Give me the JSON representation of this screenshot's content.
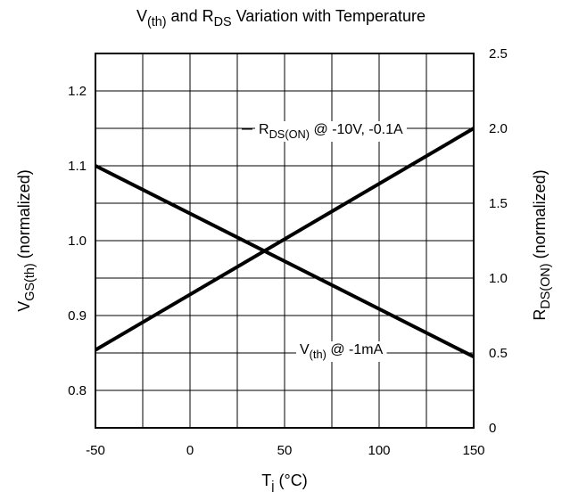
{
  "chart_data": {
    "type": "line",
    "title": {
      "parts": [
        {
          "text": "V",
          "sub": false
        },
        {
          "text": "(th)",
          "sub": true
        },
        {
          "text": " and R",
          "sub": false
        },
        {
          "text": "DS",
          "sub": true
        },
        {
          "text": " Variation with Temperature",
          "sub": false
        }
      ]
    },
    "xlabel": {
      "parts": [
        {
          "text": "T",
          "sub": false
        },
        {
          "text": "j",
          "sub": true
        },
        {
          "text": " (°C)",
          "sub": false
        }
      ]
    },
    "ylabel_left": {
      "parts": [
        {
          "text": "V",
          "sub": false
        },
        {
          "text": "GS(th)",
          "sub": true
        },
        {
          "text": " (normalized)",
          "sub": false
        }
      ]
    },
    "ylabel_right": {
      "parts": [
        {
          "text": "R",
          "sub": false
        },
        {
          "text": "DS(ON)",
          "sub": true
        },
        {
          "text": " (normalized)",
          "sub": false
        }
      ]
    },
    "xlim": [
      -50,
      150
    ],
    "ylim_left": [
      0.75,
      1.25
    ],
    "ylim_right": [
      0,
      2.5
    ],
    "xticks": [
      "-50",
      "0",
      "50",
      "100",
      "150"
    ],
    "xtick_values": [
      -50,
      0,
      50,
      100,
      150
    ],
    "yticks_left": [
      "0.8",
      "0.9",
      "1.0",
      "1.1",
      "1.2"
    ],
    "ytick_values_left": [
      0.8,
      0.9,
      1.0,
      1.1,
      1.2
    ],
    "yticks_right": [
      "0",
      "0.5",
      "1.0",
      "1.5",
      "2.0",
      "2.5"
    ],
    "ytick_values_right": [
      0,
      0.5,
      1.0,
      1.5,
      2.0,
      2.5
    ],
    "grid": true,
    "series": [
      {
        "axis": "left",
        "x": [
          -50,
          150
        ],
        "y": [
          1.1,
          0.845
        ],
        "annotation": {
          "parts": [
            {
              "text": "V",
              "sub": false
            },
            {
              "text": "(th)",
              "sub": true
            },
            {
              "text": " @ -1mA",
              "sub": false
            }
          ]
        }
      },
      {
        "axis": "right",
        "x": [
          -50,
          150
        ],
        "y": [
          0.52,
          2.0
        ],
        "annotation": {
          "parts": [
            {
              "text": "R",
              "sub": false
            },
            {
              "text": "DS(ON)",
              "sub": true
            },
            {
              "text": " @ -10V, -0.1A",
              "sub": false
            }
          ]
        }
      }
    ]
  }
}
